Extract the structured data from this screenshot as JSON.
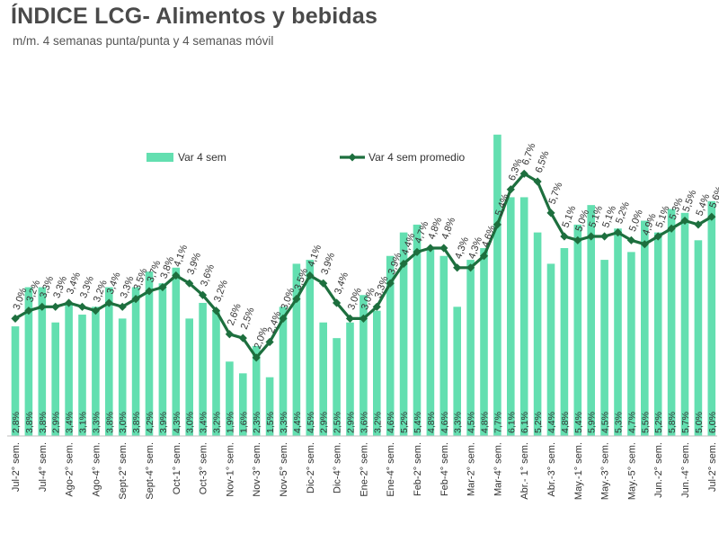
{
  "header": {
    "title": "ÍNDICE LCG- Alimentos y bebidas",
    "subtitle": "m/m. 4 semanas punta/punta y 4 semanas móvil"
  },
  "colors": {
    "bar": "#63dfb0",
    "line": "#1d6f3e"
  },
  "chart_data": {
    "type": "bar+line",
    "title": "ÍNDICE LCG- Alimentos y bebidas",
    "subtitle": "m/m. 4 semanas punta/punta y 4 semanas móvil",
    "legend": {
      "bar_label": "Var 4 sem",
      "line_label": "Var 4 sem promedio",
      "position": "top-center"
    },
    "categories": [
      "Jul-2° sem.",
      "",
      "Jul-4° sem.",
      "",
      "Ago-2° sem.",
      "",
      "Ago-4° sem.",
      "",
      "Sept-2° sem.",
      "",
      "Sept-4° sem.",
      "",
      "Oct-1° sem.",
      "",
      "Oct-3° sem.",
      "",
      "Nov-1° sem.",
      "",
      "Nov-3° sem.",
      "",
      "Nov-5° sem.",
      "",
      "Dic-2° sem.",
      "",
      "Dic-4° sem.",
      "",
      "Ene-2° sem.",
      "",
      "Ene-4° sem.",
      "",
      "Feb-2° sem.",
      "",
      "Feb-4° sem.",
      "",
      "Mar-2° sem.",
      "",
      "Mar-4° sem.",
      "",
      "Abr.- 1° sem.",
      "",
      "Abr.-3° sem.",
      "",
      "May.-1° sem.",
      "",
      "May.-3° sem.",
      "",
      "May.-5° sem.",
      "",
      "Jun.-2° sem.",
      "",
      "Jun.-4° sem.",
      "",
      "Jul-2° sem."
    ],
    "series": [
      {
        "name": "Var 4 sem",
        "kind": "bar",
        "values": [
          2.8,
          3.8,
          3.8,
          2.9,
          3.4,
          3.1,
          3.3,
          3.8,
          3.0,
          3.8,
          4.2,
          3.9,
          4.3,
          3.0,
          3.4,
          3.2,
          1.9,
          1.6,
          2.3,
          1.5,
          3.3,
          4.4,
          4.5,
          2.9,
          2.5,
          2.9,
          3.6,
          3.2,
          4.6,
          5.2,
          5.4,
          4.8,
          4.6,
          3.3,
          4.5,
          4.8,
          7.7,
          6.1,
          6.1,
          5.2,
          4.4,
          4.8,
          5.4,
          5.9,
          4.5,
          5.3,
          4.7,
          5.5,
          5.2,
          5.8,
          5.7,
          5.0,
          6.0
        ]
      },
      {
        "name": "Var 4 sem promedio",
        "kind": "line",
        "values": [
          3.0,
          3.2,
          3.3,
          3.3,
          3.4,
          3.3,
          3.2,
          3.4,
          3.3,
          3.5,
          3.7,
          3.8,
          4.1,
          3.9,
          3.6,
          3.2,
          2.6,
          2.5,
          2.0,
          2.4,
          3.0,
          3.5,
          4.1,
          3.9,
          3.4,
          3.0,
          3.0,
          3.3,
          3.9,
          4.4,
          4.7,
          4.8,
          4.8,
          4.3,
          4.3,
          4.6,
          5.4,
          6.3,
          6.7,
          6.5,
          5.7,
          5.1,
          5.0,
          5.1,
          5.1,
          5.2,
          5.0,
          4.9,
          5.1,
          5.3,
          5.5,
          5.4,
          5.6
        ]
      }
    ],
    "bar_labels": [
      "2,8%",
      "3,8%",
      "3,8%",
      "2,9%",
      "3,4%",
      "3,1%",
      "3,3%",
      "3,8%",
      "3,0%",
      "3,8%",
      "4,2%",
      "3,9%",
      "4,3%",
      "3,0%",
      "3,4%",
      "3,2%",
      "1,9%",
      "1,6%",
      "2,3%",
      "1,5%",
      "3,3%",
      "4,4%",
      "4,5%",
      "2,9%",
      "2,5%",
      "2,9%",
      "3,6%",
      "3,2%",
      "4,6%",
      "5,2%",
      "5,4%",
      "4,8%",
      "4,6%",
      "3,3%",
      "4,5%",
      "4,8%",
      "7,7%",
      "6,1%",
      "6,1%",
      "5,2%",
      "4,4%",
      "4,8%",
      "5,4%",
      "5,9%",
      "4,5%",
      "5,3%",
      "4,7%",
      "5,5%",
      "5,2%",
      "5,8%",
      "5,7%",
      "5,0%",
      "6,0%"
    ],
    "line_labels": [
      "3,0%",
      "3,2%",
      "3,3%",
      "3,3%",
      "3,4%",
      "3,3%",
      "3,2%",
      "3,4%",
      "3,3%",
      "3,5%",
      "3,7%",
      "3,8%",
      "4,1%",
      "3,9%",
      "3,6%",
      "3,2%",
      "2,6%",
      "2,5%",
      "2,0%",
      "2,4%",
      "3,0%",
      "3,5%",
      "4,1%",
      "3,9%",
      "3,4%",
      "3,0%",
      "3,0%",
      "3,3%",
      "3,9%",
      "4,4%",
      "4,7%",
      "4,8%",
      "4,8%",
      "4,3%",
      "4,3%",
      "4,6%",
      "5,4%",
      "6,3%",
      "6,7%",
      "6,5%",
      "5,7%",
      "5,1%",
      "5,0%",
      "5,1%",
      "5,1%",
      "5,2%",
      "5,0%",
      "4,9%",
      "5,1%",
      "5,3%",
      "5,5%",
      "5,4%",
      "5,6%"
    ],
    "ylim": [
      0,
      8.2
    ],
    "grid": false
  }
}
